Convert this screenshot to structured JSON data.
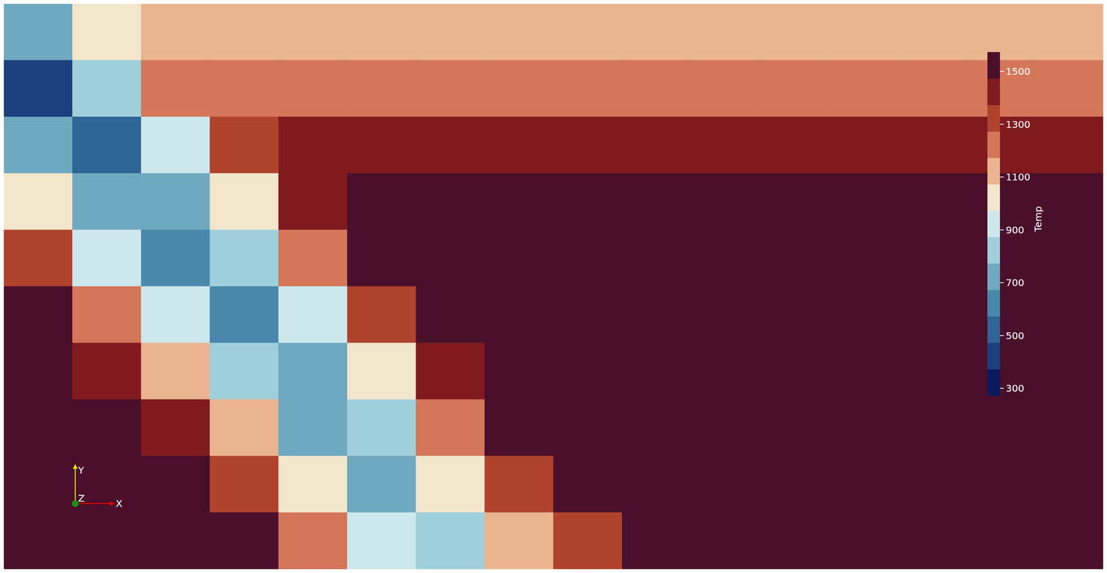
{
  "chart_data": {
    "type": "heatmap",
    "tick_labels": false,
    "xlim": [
      0,
      16
    ],
    "ylim": [
      0,
      10
    ],
    "cells": [
      [
        680,
        1070,
        1080,
        1080,
        1080,
        1080,
        1080,
        1080,
        1080,
        1080,
        1080,
        1080,
        1080,
        1080,
        1080,
        1080
      ],
      [
        470,
        820,
        1200,
        1240,
        1240,
        1240,
        1240,
        1240,
        1240,
        1240,
        1240,
        1240,
        1240,
        1240,
        1240,
        1240
      ],
      [
        770,
        570,
        950,
        1320,
        1400,
        1400,
        1400,
        1400,
        1400,
        1400,
        1400,
        1400,
        1400,
        1400,
        1400,
        1400
      ],
      [
        1050,
        700,
        710,
        1070,
        1430,
        1550,
        1550,
        1550,
        1550,
        1550,
        1550,
        1550,
        1550,
        1550,
        1550,
        1550
      ],
      [
        1320,
        970,
        620,
        840,
        1190,
        1530,
        1550,
        1550,
        1550,
        1550,
        1550,
        1550,
        1550,
        1550,
        1550,
        1550
      ],
      [
        1550,
        1230,
        900,
        620,
        960,
        1290,
        1550,
        1550,
        1550,
        1550,
        1550,
        1550,
        1550,
        1550,
        1550,
        1550
      ],
      [
        1550,
        1470,
        1150,
        830,
        750,
        1070,
        1400,
        1550,
        1550,
        1550,
        1550,
        1550,
        1550,
        1550,
        1550,
        1550
      ],
      [
        1550,
        1550,
        1390,
        1080,
        770,
        870,
        1180,
        1490,
        1550,
        1550,
        1550,
        1550,
        1550,
        1550,
        1550,
        1550
      ],
      [
        1550,
        1550,
        1550,
        1310,
        1010,
        710,
        980,
        1280,
        1550,
        1550,
        1550,
        1550,
        1550,
        1550,
        1550,
        1550
      ],
      [
        1550,
        1550,
        1550,
        1520,
        1240,
        950,
        800,
        1090,
        1370,
        1550,
        1550,
        1550,
        1550,
        1550,
        1550,
        1550
      ]
    ],
    "colorbar": {
      "title": "Temp",
      "range": [
        273,
        1573
      ],
      "ticks": [
        300,
        500,
        700,
        900,
        1100,
        1300,
        1500
      ],
      "colors": [
        "#0a1a5c",
        "#1c3f7e",
        "#2f6594",
        "#4a88ab",
        "#6fa9c0",
        "#a0cfdc",
        "#cde8ec",
        "#f2e6cc",
        "#e9b48f",
        "#d47659",
        "#b0432e",
        "#801a1f",
        "#4a0f2a"
      ]
    },
    "axis_labels": {
      "x": "X",
      "y": "Y",
      "z": "Z"
    }
  }
}
